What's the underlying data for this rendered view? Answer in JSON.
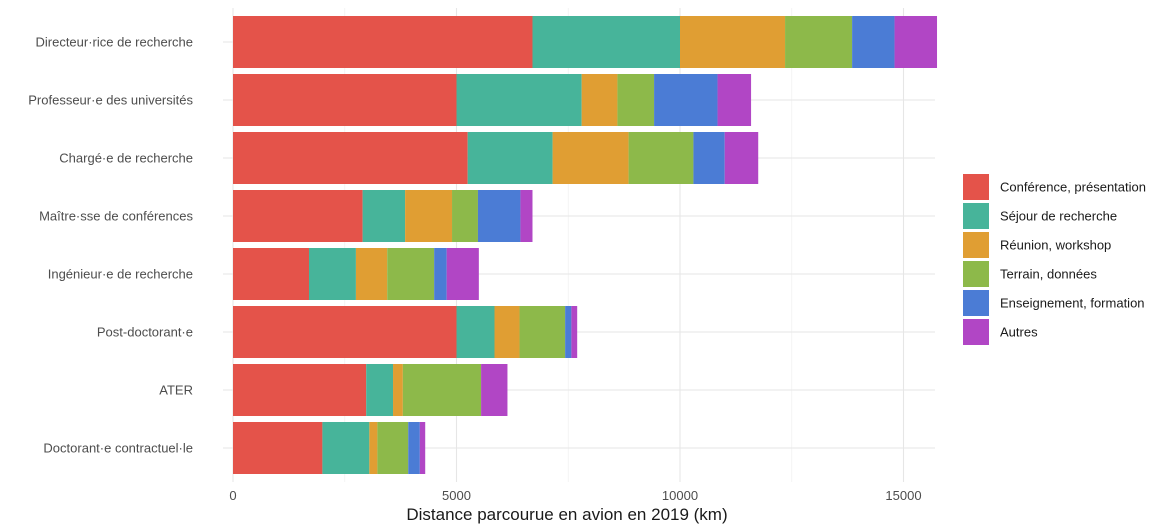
{
  "chart_data": {
    "type": "bar",
    "orientation": "horizontal",
    "stacked": true,
    "title": "",
    "xlabel": "Distance parcourue en avion en 2019 (km)",
    "ylabel": "",
    "xlim": [
      0,
      15700
    ],
    "xticks": [
      0,
      5000,
      10000,
      15000
    ],
    "xtick_labels": [
      "0",
      "5000",
      "10000",
      "15000"
    ],
    "grid": true,
    "legend_position": "right",
    "categories": [
      "Directeur·rice de recherche",
      "Professeur·e des universités",
      "Chargé·e de recherche",
      "Maître·sse de conférences",
      "Ingénieur·e de recherche",
      "Post-doctorant·e",
      "ATER",
      "Doctorant·e contractuel·le"
    ],
    "series": [
      {
        "name": "Conférence, présentation",
        "color": "#E4534A",
        "values": [
          6700,
          5000,
          5250,
          2900,
          1700,
          5000,
          2980,
          2000
        ]
      },
      {
        "name": "Séjour de recherche",
        "color": "#47B49A",
        "values": [
          3300,
          2800,
          1900,
          950,
          1050,
          850,
          600,
          1050
        ]
      },
      {
        "name": "Réunion, workshop",
        "color": "#E09E33",
        "values": [
          2350,
          800,
          1700,
          1050,
          700,
          560,
          220,
          180
        ]
      },
      {
        "name": "Terrain, données",
        "color": "#8DB94A",
        "values": [
          1500,
          820,
          1450,
          580,
          1050,
          1020,
          1750,
          690
        ]
      },
      {
        "name": "Enseignement, formation",
        "color": "#4B7CD5",
        "values": [
          950,
          1420,
          700,
          950,
          280,
          140,
          0,
          260
        ]
      },
      {
        "name": "Autres",
        "color": "#B146C5",
        "values": [
          950,
          750,
          750,
          270,
          720,
          130,
          590,
          120
        ]
      }
    ]
  }
}
